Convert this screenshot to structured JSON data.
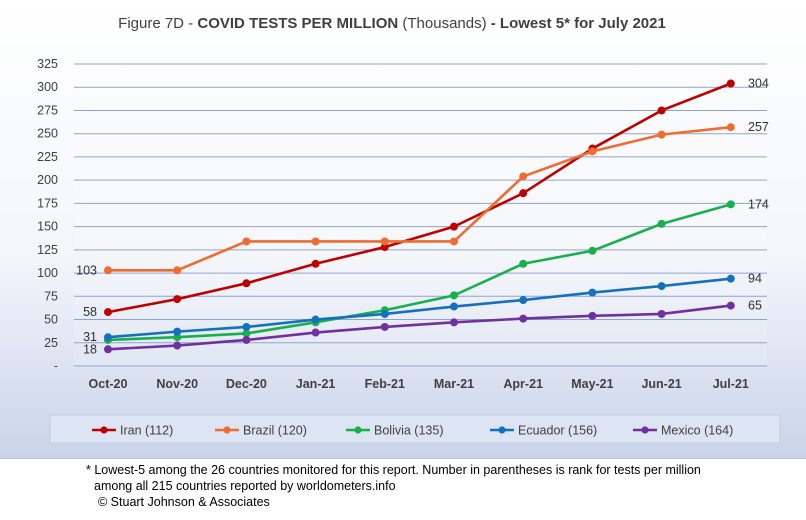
{
  "chart_data": {
    "type": "line",
    "title": {
      "prefix": "Figure 7D - ",
      "main": "COVID TESTS PER MILLION",
      "unit": " (Thousands)",
      "suffix": " - Lowest 5* for July 2021"
    },
    "categories": [
      "Oct-20",
      "Nov-20",
      "Dec-20",
      "Jan-21",
      "Feb-21",
      "Mar-21",
      "Apr-21",
      "May-21",
      "Jun-21",
      "Jul-21"
    ],
    "ylim": [
      0,
      325
    ],
    "yticks": [
      0,
      25,
      50,
      75,
      100,
      125,
      150,
      175,
      200,
      225,
      250,
      275,
      300,
      325
    ],
    "ytick_labels": [
      "-",
      "25",
      "50",
      "75",
      "100",
      "125",
      "150",
      "175",
      "200",
      "225",
      "250",
      "275",
      "300",
      "325"
    ],
    "grid": true,
    "legend_position": "bottom",
    "series": [
      {
        "name": "Iran (112)",
        "color": "#c00000",
        "values": [
          58,
          72,
          89,
          110,
          128,
          150,
          186,
          234,
          275,
          304
        ],
        "start_label": "58",
        "end_label": "304"
      },
      {
        "name": "Brazil (120)",
        "color": "#ef6b2f",
        "values": [
          103,
          103,
          134,
          134,
          134,
          134,
          204,
          231,
          249,
          257
        ],
        "start_label": "103",
        "end_label": "257"
      },
      {
        "name": "Bolivia (135)",
        "color": "#18b04c",
        "values": [
          28,
          31,
          35,
          47,
          60,
          76,
          110,
          124,
          153,
          174
        ],
        "start_label": "",
        "end_label": "174"
      },
      {
        "name": "Ecuador (156)",
        "color": "#1670c0",
        "values": [
          31,
          37,
          42,
          50,
          56,
          64,
          71,
          79,
          86,
          94
        ],
        "start_label": "31",
        "end_label": "94"
      },
      {
        "name": "Mexico (164)",
        "color": "#7030a0",
        "values": [
          18,
          22,
          28,
          36,
          42,
          47,
          51,
          54,
          56,
          65
        ],
        "start_label": "18",
        "end_label": "65"
      }
    ]
  },
  "footnote": {
    "line1": "* Lowest-5 among the 26 countries monitored for this report. Number in parentheses is rank for tests per million",
    "line2": "among all 215 countries reported by worldometers.info",
    "line3": "© Stuart Johnson & Associates"
  }
}
